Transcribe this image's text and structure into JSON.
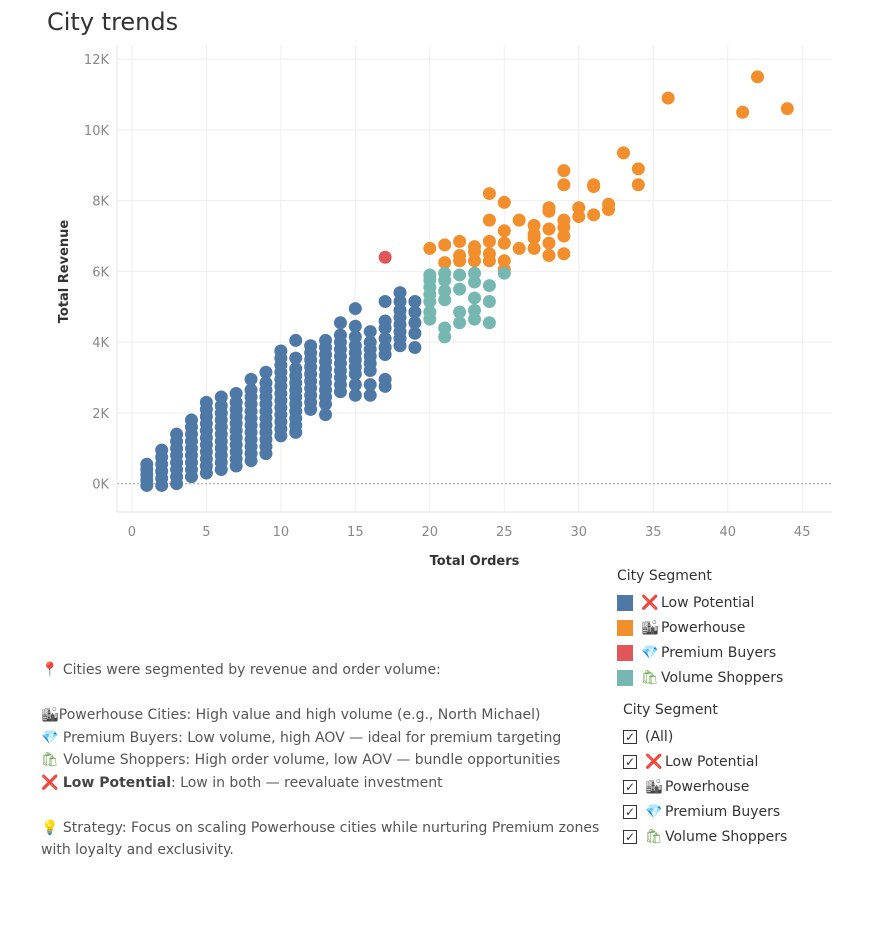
{
  "title": "City trends",
  "chart_data": {
    "type": "scatter",
    "xlabel": "Total Orders",
    "ylabel": "Total Revenue",
    "xlim": [
      -1,
      47
    ],
    "ylim": [
      -800,
      12400
    ],
    "xticks": [
      0,
      5,
      10,
      15,
      20,
      25,
      30,
      35,
      40,
      45
    ],
    "yticks": [
      0,
      2000,
      4000,
      6000,
      8000,
      10000,
      12000
    ],
    "ytick_labels": [
      "0K",
      "2K",
      "4K",
      "6K",
      "8K",
      "10K",
      "12K"
    ],
    "grid": true,
    "series": [
      {
        "name": "Low Potential",
        "color": "#4e79a7",
        "points": [
          [
            1,
            -50
          ],
          [
            1,
            100
          ],
          [
            1,
            250
          ],
          [
            1,
            400
          ],
          [
            1,
            550
          ],
          [
            2,
            -50
          ],
          [
            2,
            150
          ],
          [
            2,
            350
          ],
          [
            2,
            550
          ],
          [
            2,
            750
          ],
          [
            2,
            950
          ],
          [
            3,
            0
          ],
          [
            3,
            200
          ],
          [
            3,
            400
          ],
          [
            3,
            600
          ],
          [
            3,
            800
          ],
          [
            3,
            1000
          ],
          [
            3,
            1200
          ],
          [
            3,
            1400
          ],
          [
            4,
            200
          ],
          [
            4,
            400
          ],
          [
            4,
            600
          ],
          [
            4,
            800
          ],
          [
            4,
            1000
          ],
          [
            4,
            1200
          ],
          [
            4,
            1400
          ],
          [
            4,
            1600
          ],
          [
            4,
            1800
          ],
          [
            5,
            300
          ],
          [
            5,
            500
          ],
          [
            5,
            700
          ],
          [
            5,
            900
          ],
          [
            5,
            1100
          ],
          [
            5,
            1300
          ],
          [
            5,
            1500
          ],
          [
            5,
            1700
          ],
          [
            5,
            1900
          ],
          [
            5,
            2100
          ],
          [
            5,
            2300
          ],
          [
            6,
            400
          ],
          [
            6,
            600
          ],
          [
            6,
            800
          ],
          [
            6,
            1000
          ],
          [
            6,
            1200
          ],
          [
            6,
            1400
          ],
          [
            6,
            1600
          ],
          [
            6,
            1800
          ],
          [
            6,
            2000
          ],
          [
            6,
            2200
          ],
          [
            6,
            2450
          ],
          [
            7,
            500
          ],
          [
            7,
            700
          ],
          [
            7,
            900
          ],
          [
            7,
            1100
          ],
          [
            7,
            1300
          ],
          [
            7,
            1500
          ],
          [
            7,
            1700
          ],
          [
            7,
            1900
          ],
          [
            7,
            2100
          ],
          [
            7,
            2300
          ],
          [
            7,
            2550
          ],
          [
            8,
            650
          ],
          [
            8,
            850
          ],
          [
            8,
            1050
          ],
          [
            8,
            1250
          ],
          [
            8,
            1450
          ],
          [
            8,
            1650
          ],
          [
            8,
            1850
          ],
          [
            8,
            2050
          ],
          [
            8,
            2250
          ],
          [
            8,
            2450
          ],
          [
            8,
            2650
          ],
          [
            8,
            2950
          ],
          [
            9,
            1050
          ],
          [
            9,
            1250
          ],
          [
            9,
            1450
          ],
          [
            9,
            1650
          ],
          [
            9,
            1850
          ],
          [
            9,
            2050
          ],
          [
            9,
            2250
          ],
          [
            9,
            2450
          ],
          [
            9,
            2650
          ],
          [
            9,
            2850
          ],
          [
            9,
            3150
          ],
          [
            9,
            850
          ],
          [
            10,
            1350
          ],
          [
            10,
            1550
          ],
          [
            10,
            1750
          ],
          [
            10,
            1950
          ],
          [
            10,
            2150
          ],
          [
            10,
            2350
          ],
          [
            10,
            2550
          ],
          [
            10,
            2750
          ],
          [
            10,
            2950
          ],
          [
            10,
            3150
          ],
          [
            10,
            3350
          ],
          [
            10,
            3550
          ],
          [
            10,
            3750
          ],
          [
            11,
            1450
          ],
          [
            11,
            1650
          ],
          [
            11,
            1850
          ],
          [
            11,
            2050
          ],
          [
            11,
            2250
          ],
          [
            11,
            2450
          ],
          [
            11,
            2650
          ],
          [
            11,
            2850
          ],
          [
            11,
            3050
          ],
          [
            11,
            3250
          ],
          [
            11,
            3550
          ],
          [
            11,
            4050
          ],
          [
            12,
            2100
          ],
          [
            12,
            2300
          ],
          [
            12,
            2500
          ],
          [
            12,
            2700
          ],
          [
            12,
            2900
          ],
          [
            12,
            3100
          ],
          [
            12,
            3300
          ],
          [
            12,
            3500
          ],
          [
            12,
            3700
          ],
          [
            12,
            3900
          ],
          [
            13,
            1950
          ],
          [
            13,
            2250
          ],
          [
            13,
            2450
          ],
          [
            13,
            2650
          ],
          [
            13,
            2850
          ],
          [
            13,
            3050
          ],
          [
            13,
            3250
          ],
          [
            13,
            3450
          ],
          [
            13,
            3650
          ],
          [
            13,
            3850
          ],
          [
            13,
            4050
          ],
          [
            14,
            2600
          ],
          [
            14,
            2800
          ],
          [
            14,
            3000
          ],
          [
            14,
            3200
          ],
          [
            14,
            3400
          ],
          [
            14,
            3600
          ],
          [
            14,
            3800
          ],
          [
            14,
            4000
          ],
          [
            14,
            4200
          ],
          [
            14,
            4550
          ],
          [
            15,
            2500
          ],
          [
            15,
            2800
          ],
          [
            15,
            3100
          ],
          [
            15,
            3300
          ],
          [
            15,
            3500
          ],
          [
            15,
            3700
          ],
          [
            15,
            3900
          ],
          [
            15,
            4150
          ],
          [
            15,
            4450
          ],
          [
            15,
            4950
          ],
          [
            16,
            2500
          ],
          [
            16,
            2800
          ],
          [
            16,
            3200
          ],
          [
            16,
            3400
          ],
          [
            16,
            3600
          ],
          [
            16,
            3800
          ],
          [
            16,
            4000
          ],
          [
            16,
            4300
          ],
          [
            17,
            2750
          ],
          [
            17,
            2950
          ],
          [
            17,
            3650
          ],
          [
            17,
            3850
          ],
          [
            17,
            4100
          ],
          [
            17,
            4400
          ],
          [
            17,
            4600
          ],
          [
            17,
            5150
          ],
          [
            18,
            3900
          ],
          [
            18,
            4100
          ],
          [
            18,
            4300
          ],
          [
            18,
            4500
          ],
          [
            18,
            4700
          ],
          [
            18,
            4900
          ],
          [
            18,
            5150
          ],
          [
            18,
            5400
          ],
          [
            19,
            3850
          ],
          [
            19,
            4250
          ],
          [
            19,
            4550
          ],
          [
            19,
            4850
          ],
          [
            19,
            5150
          ]
        ]
      },
      {
        "name": "Powerhouse",
        "color": "#f28e2b",
        "points": [
          [
            20,
            6650
          ],
          [
            21,
            6250
          ],
          [
            21,
            6750
          ],
          [
            22,
            6300
          ],
          [
            22,
            6450
          ],
          [
            22,
            6850
          ],
          [
            23,
            6300
          ],
          [
            23,
            6550
          ],
          [
            23,
            6700
          ],
          [
            24,
            6300
          ],
          [
            24,
            6500
          ],
          [
            24,
            6850
          ],
          [
            24,
            7450
          ],
          [
            24,
            8200
          ],
          [
            25,
            6050
          ],
          [
            25,
            6300
          ],
          [
            25,
            6800
          ],
          [
            25,
            7150
          ],
          [
            25,
            7950
          ],
          [
            26,
            6650
          ],
          [
            26,
            7450
          ],
          [
            27,
            6650
          ],
          [
            27,
            6950
          ],
          [
            27,
            7050
          ],
          [
            27,
            7300
          ],
          [
            28,
            6450
          ],
          [
            28,
            6800
          ],
          [
            28,
            7200
          ],
          [
            28,
            7700
          ],
          [
            28,
            7800
          ],
          [
            29,
            6500
          ],
          [
            29,
            7000
          ],
          [
            29,
            7250
          ],
          [
            29,
            7450
          ],
          [
            29,
            8450
          ],
          [
            29,
            8850
          ],
          [
            30,
            7550
          ],
          [
            30,
            7800
          ],
          [
            31,
            7600
          ],
          [
            31,
            8400
          ],
          [
            31,
            8450
          ],
          [
            32,
            7750
          ],
          [
            32,
            7900
          ],
          [
            33,
            9350
          ],
          [
            34,
            8450
          ],
          [
            34,
            8900
          ],
          [
            36,
            10900
          ],
          [
            41,
            10500
          ],
          [
            42,
            11500
          ],
          [
            44,
            10600
          ]
        ]
      },
      {
        "name": "Premium Buyers",
        "color": "#e15759",
        "points": [
          [
            17,
            6400
          ]
        ]
      },
      {
        "name": "Volume Shoppers",
        "color": "#76b7b2",
        "points": [
          [
            20,
            4650
          ],
          [
            20,
            4850
          ],
          [
            20,
            5150
          ],
          [
            20,
            5350
          ],
          [
            20,
            5550
          ],
          [
            20,
            5750
          ],
          [
            20,
            5900
          ],
          [
            21,
            4150
          ],
          [
            21,
            4400
          ],
          [
            21,
            5200
          ],
          [
            21,
            5450
          ],
          [
            21,
            5750
          ],
          [
            21,
            5950
          ],
          [
            22,
            4550
          ],
          [
            22,
            4850
          ],
          [
            22,
            5500
          ],
          [
            22,
            5900
          ],
          [
            23,
            4650
          ],
          [
            23,
            4900
          ],
          [
            23,
            5250
          ],
          [
            23,
            5700
          ],
          [
            23,
            5950
          ],
          [
            24,
            4550
          ],
          [
            24,
            5150
          ],
          [
            24,
            5600
          ],
          [
            25,
            5950
          ]
        ]
      }
    ]
  },
  "legend": {
    "title": "City Segment",
    "items": [
      {
        "color": "#4e79a7",
        "icon": "❌",
        "label": "Low Potential"
      },
      {
        "color": "#f28e2b",
        "icon": "🏙",
        "label": "Powerhouse"
      },
      {
        "color": "#e15759",
        "icon": "💎",
        "label": "Premium Buyers"
      },
      {
        "color": "#76b7b2",
        "icon": "🛍",
        "label": "Volume Shoppers"
      }
    ]
  },
  "filter": {
    "title": "City Segment",
    "items": [
      {
        "checked": "✓",
        "icon": "",
        "label": "(All)"
      },
      {
        "checked": "✓",
        "icon": "❌",
        "label": "Low Potential"
      },
      {
        "checked": "✓",
        "icon": "🏙",
        "label": "Powerhouse"
      },
      {
        "checked": "✓",
        "icon": "💎",
        "label": "Premium Buyers"
      },
      {
        "checked": "✓",
        "icon": "🛍",
        "label": "Volume Shoppers"
      }
    ]
  },
  "notes": {
    "intro_icon": "📍",
    "intro": "Cities were segmented by revenue and order volume:",
    "line1_icon": "🏙",
    "line1": "Powerhouse Cities: High value and high volume (e.g., North Michael)",
    "line2_icon": "💎",
    "line2": "Premium Buyers: Low volume, high AOV — ideal for premium targeting",
    "line3_icon": "🛍",
    "line3": "Volume Shoppers: High order volume, low AOV — bundle opportunities",
    "line4_icon": "❌",
    "line4_bold": "Low Potential",
    "line4_rest": ": Low in both — reevaluate investment",
    "strategy_icon": "💡",
    "strategy": "Strategy: Focus on scaling Powerhouse cities while nurturing Premium zones with loyalty and exclusivity."
  }
}
